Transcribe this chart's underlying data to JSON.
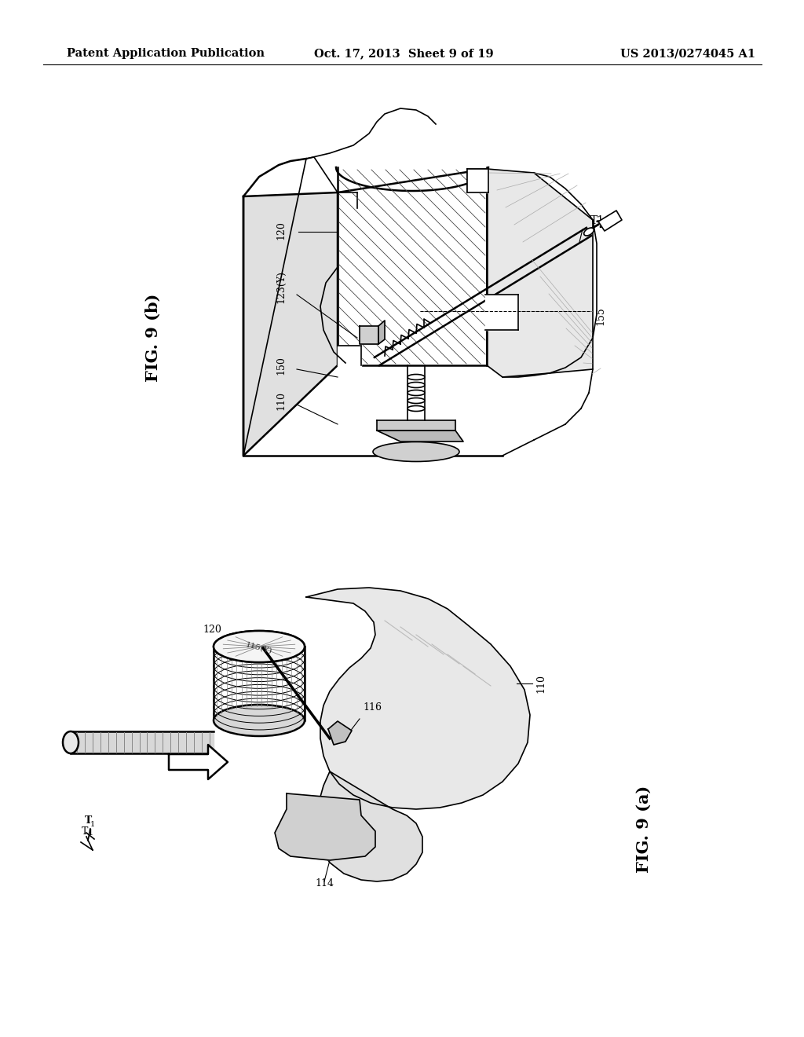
{
  "background_color": "#ffffff",
  "header_left": "Patent Application Publication",
  "header_mid": "Oct. 17, 2013  Sheet 9 of 19",
  "header_right": "US 2013/0274045 A1",
  "line_color": "#000000",
  "fig_b_label": "FIG. 9 (b)",
  "fig_a_label": "FIG. 9 (a)",
  "header_fontsize": 10.5,
  "ref_fontsize": 9,
  "fig_label_fontsize": 15
}
